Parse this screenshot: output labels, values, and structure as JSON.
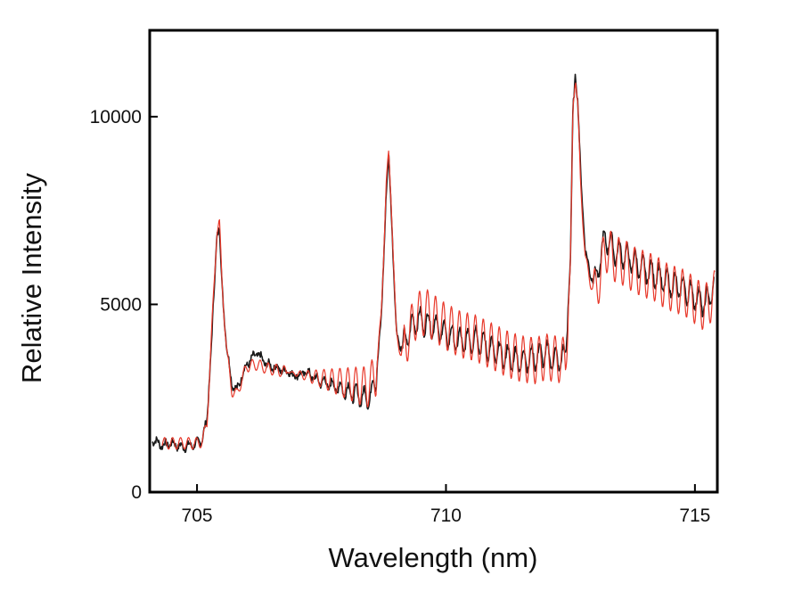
{
  "chart_data": {
    "type": "line",
    "title": "",
    "xlabel": "Wavelength (nm)",
    "ylabel": "Relative Intensity",
    "xlim": [
      704.05,
      715.45
    ],
    "ylim": [
      0,
      12300
    ],
    "xticks": [
      705,
      710,
      715
    ],
    "yticks": [
      0,
      5000,
      10000
    ],
    "grid": false,
    "legend": "none",
    "series": [
      {
        "color": "#1a1a1a",
        "style": "measured, noisy",
        "x": [
          704.1,
          704.3,
          704.5,
          704.7,
          704.9,
          705.0,
          705.1,
          705.2,
          705.3,
          705.4,
          705.45,
          705.5,
          705.6,
          705.7,
          705.8,
          705.9,
          706.0,
          706.2,
          706.4,
          706.6,
          706.8,
          707.0,
          707.2,
          707.4,
          707.6,
          707.8,
          708.0,
          708.2,
          708.4,
          708.5,
          708.6,
          708.7,
          708.8,
          708.85,
          708.9,
          709.0,
          709.1,
          709.2,
          709.4,
          709.6,
          709.8,
          710.0,
          710.3,
          710.6,
          710.9,
          711.2,
          711.5,
          711.8,
          712.0,
          712.2,
          712.4,
          712.5,
          712.55,
          712.6,
          712.65,
          712.7,
          712.8,
          712.9,
          713.0,
          713.1,
          713.2,
          713.4,
          713.6,
          713.8,
          714.0,
          714.2,
          714.4,
          714.6,
          714.8,
          715.0,
          715.2,
          715.4
        ],
        "y": [
          1400,
          1250,
          1300,
          1200,
          1250,
          1300,
          1400,
          1900,
          4200,
          6900,
          7050,
          5500,
          3800,
          2900,
          2700,
          3100,
          3400,
          3700,
          3400,
          3300,
          3200,
          3100,
          3200,
          3000,
          2900,
          2800,
          2700,
          2600,
          2500,
          2600,
          3100,
          4600,
          8000,
          8900,
          7600,
          4300,
          3800,
          4100,
          4600,
          4500,
          4400,
          4200,
          4000,
          4100,
          3800,
          3600,
          3500,
          3600,
          3700,
          3500,
          3600,
          6200,
          10200,
          11200,
          10300,
          8600,
          6400,
          5800,
          5600,
          6200,
          6800,
          6400,
          6300,
          6100,
          5900,
          5800,
          5600,
          5500,
          5400,
          5200,
          5000,
          5500
        ],
        "oscillation": 320
      },
      {
        "color": "#e8392b",
        "style": "fitted, smooth",
        "x": [
          704.3,
          704.5,
          704.7,
          704.9,
          705.0,
          705.1,
          705.2,
          705.3,
          705.4,
          705.45,
          705.5,
          705.6,
          705.7,
          705.8,
          705.9,
          706.0,
          706.2,
          706.4,
          706.6,
          706.8,
          707.0,
          707.2,
          707.4,
          707.6,
          707.8,
          708.0,
          708.2,
          708.4,
          708.5,
          708.6,
          708.7,
          708.8,
          708.85,
          708.9,
          709.0,
          709.1,
          709.2,
          709.4,
          709.6,
          709.8,
          710.0,
          710.3,
          710.6,
          710.9,
          711.2,
          711.5,
          711.8,
          712.0,
          712.2,
          712.4,
          712.5,
          712.55,
          712.6,
          712.65,
          712.7,
          712.8,
          712.9,
          713.0,
          713.1,
          713.2,
          713.4,
          713.6,
          713.8,
          714.0,
          714.2,
          714.4,
          714.6,
          714.8,
          715.0,
          715.2,
          715.4
        ],
        "y": [
          1300,
          1300,
          1300,
          1300,
          1300,
          1350,
          1800,
          4400,
          7000,
          7200,
          5600,
          3700,
          2700,
          2600,
          3000,
          3350,
          3400,
          3300,
          3250,
          3200,
          3150,
          3100,
          3050,
          3000,
          2950,
          2900,
          2850,
          2800,
          2900,
          3200,
          4700,
          8200,
          9000,
          7800,
          4200,
          3700,
          4000,
          4700,
          4800,
          4600,
          4400,
          4200,
          4100,
          3900,
          3700,
          3550,
          3500,
          3600,
          3550,
          3500,
          6000,
          10300,
          11100,
          10200,
          8300,
          6200,
          5600,
          5300,
          5800,
          6500,
          6200,
          6100,
          5900,
          5800,
          5700,
          5500,
          5400,
          5300,
          5100,
          4900,
          5300
        ],
        "oscillation": 620
      }
    ]
  }
}
